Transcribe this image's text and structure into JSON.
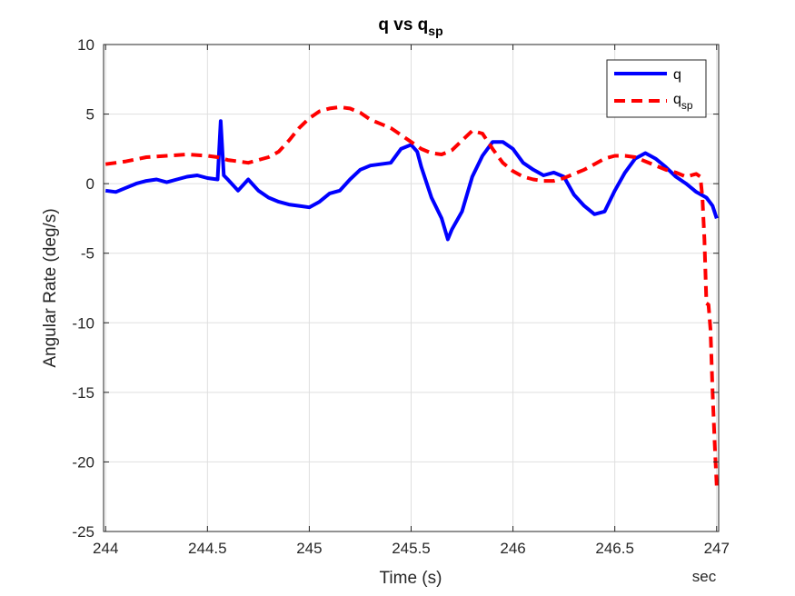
{
  "chart_data": {
    "type": "line",
    "title": "q vs q",
    "title_subscript": "sp",
    "xlabel": "Time (s)",
    "ylabel": "Angular Rate (deg/s)",
    "x_unit_label": "sec",
    "xlim": [
      243.99,
      247.01
    ],
    "ylim": [
      -25,
      10
    ],
    "xticks": [
      244,
      244.5,
      245,
      245.5,
      246,
      246.5,
      247
    ],
    "yticks": [
      10,
      5,
      0,
      -5,
      -10,
      -15,
      -20,
      -25
    ],
    "xtick_labels": [
      "244",
      "244.5",
      "245",
      "245.5",
      "246",
      "246.5",
      "247"
    ],
    "ytick_labels": [
      "10",
      "5",
      "0",
      "-5",
      "-10",
      "-15",
      "-20",
      "-25"
    ],
    "grid": true,
    "legend_position": "top-right",
    "series": [
      {
        "name": "q",
        "color": "#0000ff",
        "style": "solid",
        "x": [
          244.0,
          244.05,
          244.1,
          244.15,
          244.2,
          244.25,
          244.3,
          244.35,
          244.4,
          244.45,
          244.5,
          244.55,
          244.565,
          244.58,
          244.6,
          244.65,
          244.7,
          244.75,
          244.8,
          244.85,
          244.9,
          244.95,
          245.0,
          245.05,
          245.1,
          245.15,
          245.2,
          245.25,
          245.3,
          245.35,
          245.4,
          245.45,
          245.5,
          245.53,
          245.55,
          245.6,
          245.65,
          245.68,
          245.7,
          245.75,
          245.8,
          245.85,
          245.9,
          245.95,
          246.0,
          246.05,
          246.1,
          246.15,
          246.2,
          246.25,
          246.3,
          246.35,
          246.4,
          246.45,
          246.5,
          246.55,
          246.6,
          246.65,
          246.7,
          246.75,
          246.8,
          246.85,
          246.9,
          246.95,
          246.98,
          247.0
        ],
        "y": [
          -0.5,
          -0.6,
          -0.3,
          0.0,
          0.2,
          0.3,
          0.1,
          0.3,
          0.5,
          0.6,
          0.4,
          0.3,
          4.5,
          0.6,
          0.3,
          -0.5,
          0.3,
          -0.5,
          -1.0,
          -1.3,
          -1.5,
          -1.6,
          -1.7,
          -1.3,
          -0.7,
          -0.5,
          0.3,
          1.0,
          1.3,
          1.4,
          1.5,
          2.5,
          2.8,
          2.3,
          1.2,
          -1.0,
          -2.5,
          -4.0,
          -3.3,
          -2.0,
          0.5,
          2.0,
          3.0,
          3.0,
          2.5,
          1.5,
          1.0,
          0.6,
          0.8,
          0.5,
          -0.8,
          -1.6,
          -2.2,
          -2.0,
          -0.5,
          0.8,
          1.8,
          2.2,
          1.8,
          1.2,
          0.5,
          0.0,
          -0.6,
          -1.0,
          -1.6,
          -2.5
        ]
      },
      {
        "name": "q",
        "name_subscript": "sp",
        "color": "#ff0000",
        "style": "dashed",
        "x": [
          244.0,
          244.1,
          244.2,
          244.3,
          244.4,
          244.5,
          244.55,
          244.6,
          244.65,
          244.7,
          244.75,
          244.8,
          244.85,
          244.9,
          244.95,
          245.0,
          245.05,
          245.1,
          245.15,
          245.2,
          245.25,
          245.3,
          245.35,
          245.4,
          245.45,
          245.5,
          245.55,
          245.6,
          245.65,
          245.7,
          245.75,
          245.8,
          245.85,
          245.9,
          245.95,
          246.0,
          246.05,
          246.1,
          246.15,
          246.2,
          246.25,
          246.3,
          246.35,
          246.4,
          246.45,
          246.5,
          246.55,
          246.6,
          246.65,
          246.7,
          246.75,
          246.8,
          246.85,
          246.9,
          246.92,
          246.93,
          246.94,
          246.95,
          246.96,
          246.97,
          246.98,
          246.99,
          247.0
        ],
        "y": [
          1.4,
          1.6,
          1.9,
          2.0,
          2.1,
          2.0,
          1.9,
          1.7,
          1.6,
          1.5,
          1.7,
          1.9,
          2.3,
          3.1,
          4.0,
          4.7,
          5.2,
          5.4,
          5.5,
          5.4,
          5.1,
          4.6,
          4.3,
          4.0,
          3.5,
          3.0,
          2.5,
          2.2,
          2.1,
          2.4,
          3.1,
          3.8,
          3.6,
          2.5,
          1.5,
          0.9,
          0.5,
          0.3,
          0.2,
          0.2,
          0.4,
          0.7,
          1.0,
          1.4,
          1.8,
          2.0,
          2.0,
          1.9,
          1.6,
          1.3,
          1.0,
          0.8,
          0.5,
          0.7,
          0.5,
          -1.0,
          -4.0,
          -8.6,
          -8.7,
          -10.5,
          -15.0,
          -18.5,
          -21.7
        ]
      }
    ]
  }
}
